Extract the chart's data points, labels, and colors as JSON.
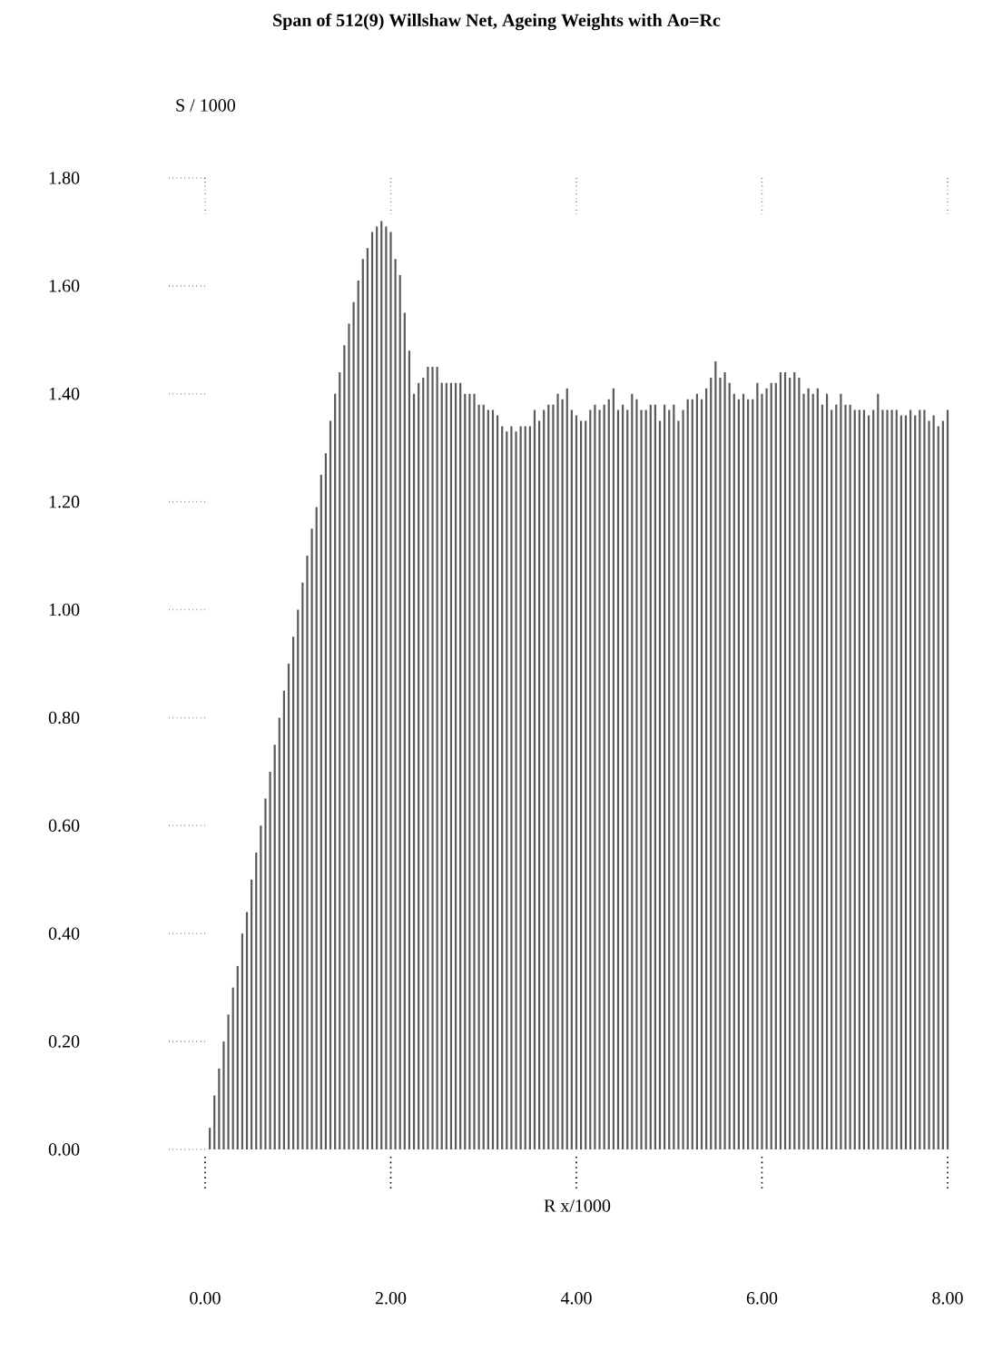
{
  "chart_data": {
    "type": "bar",
    "title": "Span of 512(9) Willshaw Net, Ageing Weights with Ao=Rc",
    "xlabel": "R x/1000",
    "ylabel": "S / 1000",
    "color": "#5a5a5a",
    "x": [
      0.05,
      0.1,
      0.15,
      0.2,
      0.25,
      0.3,
      0.35,
      0.4,
      0.45,
      0.5,
      0.55,
      0.6,
      0.65,
      0.7,
      0.75,
      0.8,
      0.85,
      0.9,
      0.95,
      1.0,
      1.05,
      1.1,
      1.15,
      1.2,
      1.25,
      1.3,
      1.35,
      1.4,
      1.45,
      1.5,
      1.55,
      1.6,
      1.65,
      1.7,
      1.75,
      1.8,
      1.85,
      1.9,
      1.95,
      2.0,
      2.05,
      2.1,
      2.15,
      2.2,
      2.25,
      2.3,
      2.35,
      2.4,
      2.45,
      2.5,
      2.55,
      2.6,
      2.65,
      2.7,
      2.75,
      2.8,
      2.85,
      2.9,
      2.95,
      3.0,
      3.05,
      3.1,
      3.15,
      3.2,
      3.25,
      3.3,
      3.35,
      3.4,
      3.45,
      3.5,
      3.55,
      3.6,
      3.65,
      3.7,
      3.75,
      3.8,
      3.85,
      3.9,
      3.95,
      4.0,
      4.05,
      4.1,
      4.15,
      4.2,
      4.25,
      4.3,
      4.35,
      4.4,
      4.45,
      4.5,
      4.55,
      4.6,
      4.65,
      4.7,
      4.75,
      4.8,
      4.85,
      4.9,
      4.95,
      5.0,
      5.05,
      5.1,
      5.15,
      5.2,
      5.25,
      5.3,
      5.35,
      5.4,
      5.45,
      5.5,
      5.55,
      5.6,
      5.65,
      5.7,
      5.75,
      5.8,
      5.85,
      5.9,
      5.95,
      6.0,
      6.05,
      6.1,
      6.15,
      6.2,
      6.25,
      6.3,
      6.35,
      6.4,
      6.45,
      6.5,
      6.55,
      6.6,
      6.65,
      6.7,
      6.75,
      6.8,
      6.85,
      6.9,
      6.95,
      7.0,
      7.05,
      7.1,
      7.15,
      7.2,
      7.25,
      7.3,
      7.35,
      7.4,
      7.45,
      7.5,
      7.55,
      7.6,
      7.65,
      7.7,
      7.75,
      7.8,
      7.85,
      7.9,
      7.95,
      8.0
    ],
    "values": [
      0.04,
      0.1,
      0.15,
      0.2,
      0.25,
      0.3,
      0.34,
      0.4,
      0.44,
      0.5,
      0.55,
      0.6,
      0.65,
      0.7,
      0.75,
      0.8,
      0.85,
      0.9,
      0.95,
      1.0,
      1.05,
      1.1,
      1.15,
      1.19,
      1.25,
      1.29,
      1.35,
      1.4,
      1.44,
      1.49,
      1.53,
      1.57,
      1.61,
      1.65,
      1.67,
      1.7,
      1.71,
      1.72,
      1.71,
      1.7,
      1.65,
      1.62,
      1.55,
      1.48,
      1.4,
      1.42,
      1.43,
      1.45,
      1.45,
      1.45,
      1.42,
      1.42,
      1.42,
      1.42,
      1.42,
      1.4,
      1.4,
      1.4,
      1.38,
      1.38,
      1.37,
      1.37,
      1.36,
      1.34,
      1.33,
      1.34,
      1.33,
      1.34,
      1.34,
      1.34,
      1.37,
      1.35,
      1.37,
      1.38,
      1.38,
      1.4,
      1.39,
      1.41,
      1.37,
      1.36,
      1.35,
      1.35,
      1.37,
      1.38,
      1.37,
      1.38,
      1.39,
      1.41,
      1.37,
      1.38,
      1.37,
      1.4,
      1.39,
      1.37,
      1.37,
      1.38,
      1.38,
      1.35,
      1.38,
      1.37,
      1.38,
      1.35,
      1.37,
      1.39,
      1.39,
      1.4,
      1.39,
      1.41,
      1.43,
      1.46,
      1.43,
      1.44,
      1.42,
      1.4,
      1.39,
      1.4,
      1.39,
      1.39,
      1.42,
      1.4,
      1.41,
      1.42,
      1.42,
      1.44,
      1.44,
      1.43,
      1.44,
      1.43,
      1.4,
      1.41,
      1.4,
      1.41,
      1.38,
      1.4,
      1.37,
      1.38,
      1.4,
      1.38,
      1.38,
      1.37,
      1.37,
      1.37,
      1.36,
      1.37,
      1.4,
      1.37,
      1.37,
      1.37,
      1.37,
      1.36,
      1.36,
      1.37,
      1.36,
      1.37,
      1.37,
      1.35,
      1.36,
      1.34,
      1.35,
      1.37
    ],
    "xlim": [
      0,
      8
    ],
    "ylim": [
      0,
      1.8
    ],
    "xticks": [
      {
        "value": 0,
        "label": "0.00"
      },
      {
        "value": 2,
        "label": "2.00"
      },
      {
        "value": 4,
        "label": "4.00"
      },
      {
        "value": 6,
        "label": "6.00"
      },
      {
        "value": 8,
        "label": "8.00"
      }
    ],
    "yticks": [
      {
        "value": 0,
        "label": "0.00"
      },
      {
        "value": 0.2,
        "label": "0.20"
      },
      {
        "value": 0.4,
        "label": "0.40"
      },
      {
        "value": 0.6,
        "label": "0.60"
      },
      {
        "value": 0.8,
        "label": "0.80"
      },
      {
        "value": 1.0,
        "label": "1.00"
      },
      {
        "value": 1.2,
        "label": "1.20"
      },
      {
        "value": 1.4,
        "label": "1.40"
      },
      {
        "value": 1.6,
        "label": "1.60"
      },
      {
        "value": 1.8,
        "label": "1.80"
      }
    ]
  }
}
